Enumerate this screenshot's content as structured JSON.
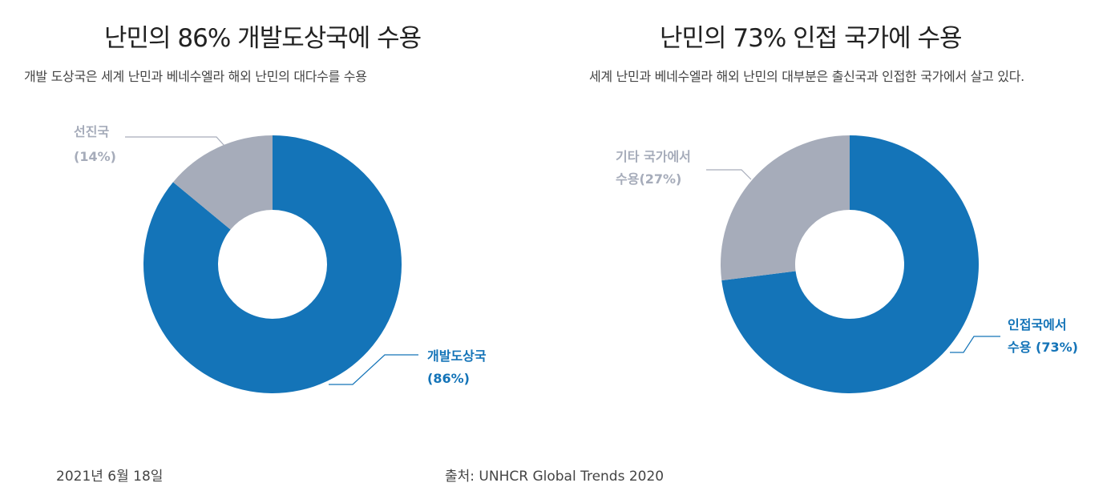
{
  "chart_data": [
    {
      "type": "pie",
      "variant": "donut",
      "title": "난민의 86% 개발도상국에 수용",
      "subtitle": "개발 도상국은 세계 난민과 베네수엘라 해외 난민의 대다수를 수용",
      "slices": [
        {
          "label_line1": "개발도상국",
          "label_line2": "(86%)",
          "value": 86,
          "color": "#1474b8"
        },
        {
          "label_line1": "선진국",
          "label_line2": "(14%)",
          "value": 14,
          "color": "#a6acba"
        }
      ]
    },
    {
      "type": "pie",
      "variant": "donut",
      "title": "난민의 73% 인접 국가에 수용",
      "subtitle": "세계 난민과 베네수엘라 해외 난민의 대부분은 출신국과 인접한 국가에서 살고 있다.",
      "slices": [
        {
          "label_line1": "인접국에서",
          "label_line2": "수용 (73%)",
          "value": 73,
          "color": "#1474b8"
        },
        {
          "label_line1": "기타 국가에서",
          "label_line2": "수용(27%)",
          "value": 27,
          "color": "#a6acba"
        }
      ]
    }
  ],
  "footer": {
    "date": "2021년 6월 18일",
    "source": "출처: UNHCR Global Trends 2020"
  }
}
